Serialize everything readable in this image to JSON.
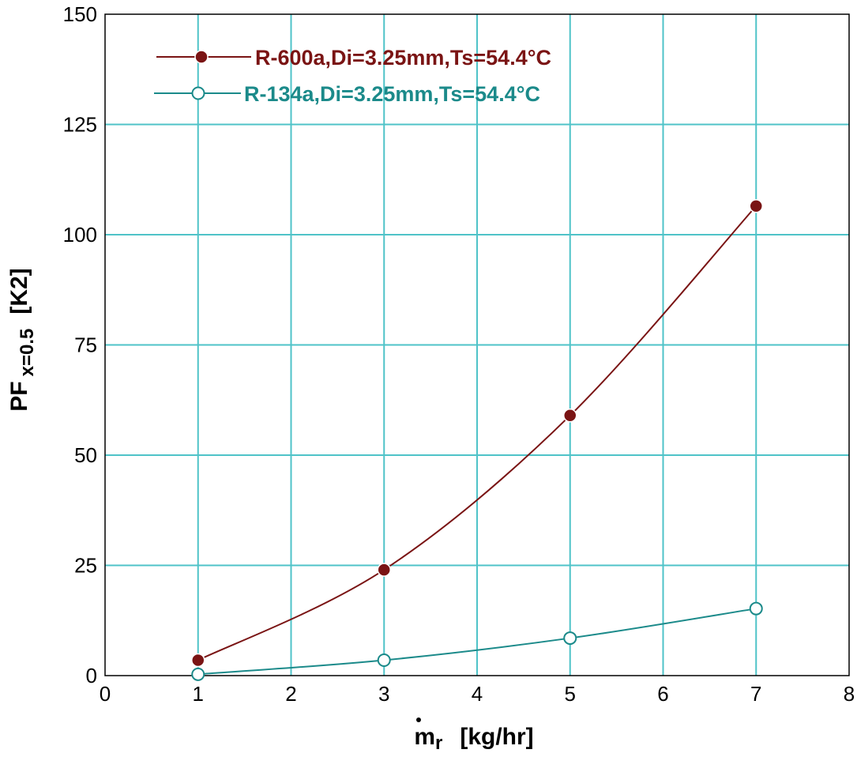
{
  "chart_data": {
    "type": "line",
    "title": "",
    "xlabel": "ṁr [kg/hr]",
    "xlabel_parts": {
      "main": "m",
      "sub": "r",
      "unit": "[kg/hr]"
    },
    "ylabel": "PF x=0.5 [K2]",
    "ylabel_parts": {
      "main": "PF",
      "sub": "x=0.5",
      "unit": "[K2]"
    },
    "xlim": [
      0,
      8
    ],
    "ylim": [
      0,
      150
    ],
    "x_ticks": [
      0,
      1,
      2,
      3,
      4,
      5,
      6,
      7,
      8
    ],
    "y_ticks": [
      0,
      25,
      50,
      75,
      100,
      125,
      150
    ],
    "grid": true,
    "grid_color": "#4fc3c8",
    "legend_position": "top-left",
    "series": [
      {
        "name": "R-600a,Di=3.25mm,Ts=54.4°C",
        "color": "#7a1414",
        "marker": "filled-circle",
        "x": [
          1,
          3,
          5,
          7
        ],
        "y": [
          3.5,
          24,
          59,
          106.5
        ]
      },
      {
        "name": "R-134a,Di=3.25mm,Ts=54.4°C",
        "color": "#1b8a8a",
        "marker": "open-circle",
        "x": [
          1,
          3,
          5,
          7
        ],
        "y": [
          0.3,
          3.5,
          8.5,
          15.2
        ]
      }
    ]
  }
}
